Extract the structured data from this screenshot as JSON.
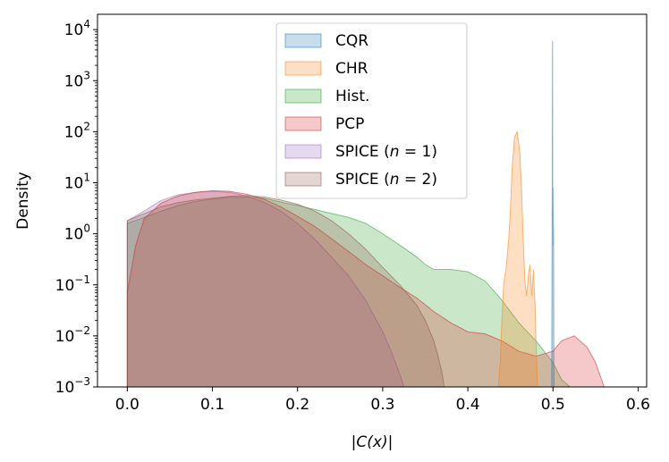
{
  "chart_data": {
    "type": "area",
    "title": "",
    "xlabel": "|C(x)|",
    "ylabel": "Density",
    "xlim": [
      -0.035,
      0.61
    ],
    "ylim_log10": [
      -3,
      4.3
    ],
    "yscale": "log",
    "x_ticks": [
      {
        "value": 0.0,
        "label": "0.0"
      },
      {
        "value": 0.1,
        "label": "0.1"
      },
      {
        "value": 0.2,
        "label": "0.2"
      },
      {
        "value": 0.3,
        "label": "0.3"
      },
      {
        "value": 0.4,
        "label": "0.4"
      },
      {
        "value": 0.5,
        "label": "0.5"
      },
      {
        "value": 0.6,
        "label": "0.6"
      }
    ],
    "y_ticks": [
      {
        "exp": -3,
        "base": "10",
        "sup": "−3"
      },
      {
        "exp": -2,
        "base": "10",
        "sup": "−2"
      },
      {
        "exp": -1,
        "base": "10",
        "sup": "−1"
      },
      {
        "exp": 0,
        "base": "10",
        "sup": "0"
      },
      {
        "exp": 1,
        "base": "10",
        "sup": "1"
      },
      {
        "exp": 2,
        "base": "10",
        "sup": "2"
      },
      {
        "exp": 3,
        "base": "10",
        "sup": "3"
      },
      {
        "exp": 4,
        "base": "10",
        "sup": "4"
      }
    ],
    "legend_position": "top-center",
    "series": [
      {
        "name": "CQR",
        "legend": {
          "main": "CQR"
        },
        "fill": "#1f77b4",
        "order": 6,
        "points": [
          [
            0.4985,
            0.001
          ],
          [
            0.499,
            2.0
          ],
          [
            0.4992,
            8.0
          ],
          [
            0.4993,
            200
          ],
          [
            0.4995,
            6000
          ],
          [
            0.4996,
            300
          ],
          [
            0.4997,
            4.5
          ],
          [
            0.4999,
            2.0
          ],
          [
            0.5001,
            8.0
          ],
          [
            0.5002,
            1.8
          ],
          [
            0.5003,
            0.6
          ],
          [
            0.5005,
            1.5
          ],
          [
            0.5007,
            0.8
          ],
          [
            0.501,
            0.003
          ],
          [
            0.5012,
            0.001
          ]
        ]
      },
      {
        "name": "CHR",
        "legend": {
          "main": "CHR"
        },
        "fill": "#ff7f0e",
        "order": 5,
        "points": [
          [
            0.436,
            0.001
          ],
          [
            0.438,
            0.003
          ],
          [
            0.44,
            0.02
          ],
          [
            0.442,
            0.1
          ],
          [
            0.445,
            0.22
          ],
          [
            0.448,
            0.8
          ],
          [
            0.45,
            3.0
          ],
          [
            0.452,
            20
          ],
          [
            0.455,
            80
          ],
          [
            0.458,
            100
          ],
          [
            0.461,
            40
          ],
          [
            0.463,
            8
          ],
          [
            0.465,
            0.8
          ],
          [
            0.467,
            0.12
          ],
          [
            0.469,
            0.06
          ],
          [
            0.471,
            0.15
          ],
          [
            0.473,
            0.25
          ],
          [
            0.475,
            0.06
          ],
          [
            0.477,
            0.2
          ],
          [
            0.479,
            0.04
          ],
          [
            0.48,
            0.008
          ],
          [
            0.482,
            0.001
          ]
        ]
      },
      {
        "name": "Hist.",
        "legend": {
          "main": "Hist."
        },
        "fill": "#2ca02c",
        "order": 1,
        "points": [
          [
            0.0,
            0.001
          ],
          [
            0.0,
            1.6
          ],
          [
            0.02,
            2.1
          ],
          [
            0.04,
            2.8
          ],
          [
            0.06,
            3.6
          ],
          [
            0.08,
            4.3
          ],
          [
            0.1,
            4.8
          ],
          [
            0.12,
            5.2
          ],
          [
            0.14,
            5.2
          ],
          [
            0.16,
            5.0
          ],
          [
            0.18,
            4.2
          ],
          [
            0.2,
            3.6
          ],
          [
            0.22,
            3.0
          ],
          [
            0.24,
            2.5
          ],
          [
            0.26,
            2.1
          ],
          [
            0.28,
            1.6
          ],
          [
            0.3,
            1.0
          ],
          [
            0.32,
            0.6
          ],
          [
            0.34,
            0.35
          ],
          [
            0.35,
            0.25
          ],
          [
            0.36,
            0.2
          ],
          [
            0.38,
            0.2
          ],
          [
            0.4,
            0.18
          ],
          [
            0.42,
            0.12
          ],
          [
            0.44,
            0.05
          ],
          [
            0.46,
            0.018
          ],
          [
            0.48,
            0.008
          ],
          [
            0.5,
            0.003
          ],
          [
            0.51,
            0.0014
          ],
          [
            0.52,
            0.001
          ]
        ]
      },
      {
        "name": "PCP",
        "legend": {
          "main": "PCP"
        },
        "fill": "#d62728",
        "order": 3,
        "points": [
          [
            0.0,
            0.001
          ],
          [
            0.0,
            0.07
          ],
          [
            0.01,
            0.6
          ],
          [
            0.02,
            2.0
          ],
          [
            0.04,
            4.0
          ],
          [
            0.06,
            5.5
          ],
          [
            0.08,
            6.5
          ],
          [
            0.1,
            7.0
          ],
          [
            0.12,
            6.8
          ],
          [
            0.14,
            6.0
          ],
          [
            0.16,
            4.8
          ],
          [
            0.18,
            3.4
          ],
          [
            0.2,
            2.2
          ],
          [
            0.22,
            1.4
          ],
          [
            0.24,
            0.8
          ],
          [
            0.26,
            0.45
          ],
          [
            0.28,
            0.25
          ],
          [
            0.3,
            0.15
          ],
          [
            0.32,
            0.09
          ],
          [
            0.34,
            0.055
          ],
          [
            0.36,
            0.03
          ],
          [
            0.38,
            0.018
          ],
          [
            0.4,
            0.012
          ],
          [
            0.42,
            0.011
          ],
          [
            0.44,
            0.008
          ],
          [
            0.46,
            0.005
          ],
          [
            0.48,
            0.004
          ],
          [
            0.5,
            0.005
          ],
          [
            0.51,
            0.008
          ],
          [
            0.525,
            0.01
          ],
          [
            0.54,
            0.006
          ],
          [
            0.55,
            0.003
          ],
          [
            0.56,
            0.001
          ]
        ]
      },
      {
        "name": "SPICE (n = 1)",
        "legend": {
          "main": "SPICE (",
          "var": "n",
          "rest": " = 1)"
        },
        "fill": "#9467bd",
        "order": 2,
        "points": [
          [
            0.0,
            0.001
          ],
          [
            0.0,
            1.8
          ],
          [
            0.02,
            2.8
          ],
          [
            0.04,
            4.5
          ],
          [
            0.06,
            5.8
          ],
          [
            0.08,
            6.5
          ],
          [
            0.1,
            6.8
          ],
          [
            0.12,
            6.5
          ],
          [
            0.14,
            5.5
          ],
          [
            0.16,
            4.2
          ],
          [
            0.18,
            2.8
          ],
          [
            0.2,
            1.6
          ],
          [
            0.22,
            0.8
          ],
          [
            0.24,
            0.35
          ],
          [
            0.26,
            0.15
          ],
          [
            0.28,
            0.05
          ],
          [
            0.3,
            0.012
          ],
          [
            0.31,
            0.005
          ],
          [
            0.32,
            0.0018
          ],
          [
            0.325,
            0.001
          ]
        ]
      },
      {
        "name": "SPICE (n = 2)",
        "legend": {
          "main": "SPICE (",
          "var": "n",
          "rest": " = 2)"
        },
        "fill": "#8c564b",
        "order": 4,
        "points": [
          [
            0.0,
            0.001
          ],
          [
            0.0,
            1.8
          ],
          [
            0.02,
            2.5
          ],
          [
            0.04,
            3.4
          ],
          [
            0.06,
            4.1
          ],
          [
            0.08,
            4.6
          ],
          [
            0.1,
            5.0
          ],
          [
            0.12,
            5.4
          ],
          [
            0.14,
            5.6
          ],
          [
            0.16,
            5.3
          ],
          [
            0.18,
            4.6
          ],
          [
            0.2,
            3.8
          ],
          [
            0.22,
            2.8
          ],
          [
            0.24,
            1.8
          ],
          [
            0.26,
            1.0
          ],
          [
            0.28,
            0.5
          ],
          [
            0.3,
            0.22
          ],
          [
            0.32,
            0.1
          ],
          [
            0.34,
            0.04
          ],
          [
            0.35,
            0.02
          ],
          [
            0.36,
            0.008
          ],
          [
            0.365,
            0.004
          ],
          [
            0.37,
            0.0018
          ],
          [
            0.372,
            0.001
          ]
        ]
      }
    ]
  }
}
